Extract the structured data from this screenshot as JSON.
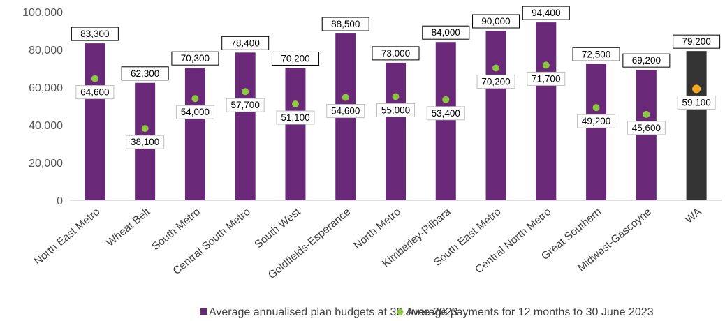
{
  "colors": {
    "budget_bar": "#6A2879",
    "wa_bar": "#333333",
    "payment_dot": "#8DC63F",
    "wa_payment_dot": "#F5A81C",
    "axis": "#BFBFBF",
    "grid": "#D9D9D9"
  },
  "legend": {
    "budget_label": "Average annualised plan budgets at 30 June 2023",
    "payment_label": "Average payments for 12 months to 30 June 2023"
  },
  "chart_data": {
    "type": "bar",
    "title": "",
    "xlabel": "",
    "ylabel": "",
    "ylim": [
      0,
      100000
    ],
    "yticks": [
      0,
      20000,
      40000,
      60000,
      80000,
      100000
    ],
    "ytick_labels": [
      "0",
      "20,000",
      "40,000",
      "60,000",
      "80,000",
      "100,000"
    ],
    "grid": false,
    "legend_position": "bottom",
    "categories": [
      "North East Metro",
      "Wheat Belt",
      "South Metro",
      "Central South Metro",
      "South West",
      "Goldfields-Esperance",
      "North Metro",
      "Kimberley-Pilbara",
      "South East Metro",
      "Central North Metro",
      "Great Southern",
      "Midwest-Gascoyne",
      "WA"
    ],
    "series": [
      {
        "name": "Average annualised plan budgets at 30 June 2023",
        "kind": "bar",
        "values": [
          83300,
          62300,
          70300,
          78400,
          70200,
          88500,
          73000,
          84000,
          90000,
          94400,
          72500,
          69200,
          79200
        ],
        "labels": [
          "83,300",
          "62,300",
          "70,300",
          "78,400",
          "70,200",
          "88,500",
          "73,000",
          "84,000",
          "90,000",
          "94,400",
          "72,500",
          "69,200",
          "79,200"
        ]
      },
      {
        "name": "Average payments for 12 months to 30 June 2023",
        "kind": "marker",
        "values": [
          64600,
          38100,
          54000,
          57700,
          51100,
          54600,
          55000,
          53400,
          70200,
          71700,
          49200,
          45600,
          59100
        ],
        "labels": [
          "64,600",
          "38,100",
          "54,000",
          "57,700",
          "51,100",
          "54,600",
          "55,000",
          "53,400",
          "70,200",
          "71,700",
          "49,200",
          "45,600",
          "59,100"
        ]
      }
    ]
  }
}
